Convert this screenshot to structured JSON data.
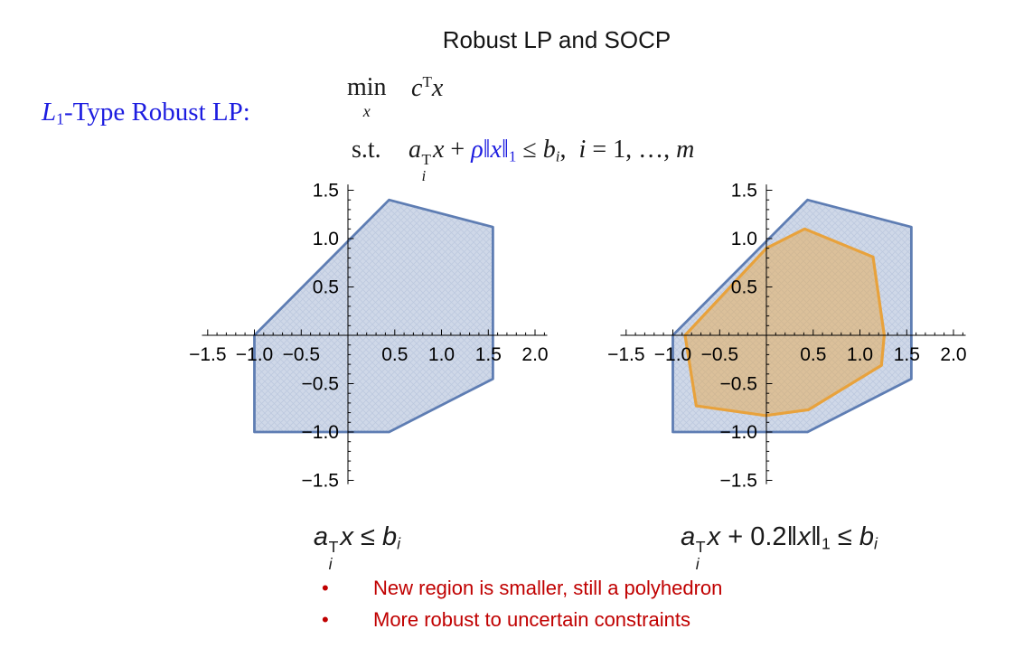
{
  "slide": {
    "title": "Robust LP and SOCP"
  },
  "colors": {
    "math_blue": "#1d1de0",
    "bullet_red": "#C00000",
    "region_blue_stroke": "#5E7DB3",
    "region_blue_fill": "rgba(95,127,179,0.30)",
    "region_orange_stroke": "#E8A23C",
    "region_orange_fill": "rgba(232,164,60,0.45)"
  },
  "label_segments": [
    {
      "t": "L",
      "c": "it"
    },
    {
      "t": "1",
      "c": "sub"
    },
    {
      "t": "-Type Robust LP:",
      "c": "rm"
    }
  ],
  "formula": {
    "min": "min",
    "min_sub": "x",
    "objective": [
      {
        "t": "c",
        "c": "it"
      },
      {
        "t": "T",
        "c": "sup"
      },
      {
        "t": "x",
        "c": "it"
      }
    ],
    "st": "s.t.",
    "constraint": [
      {
        "t": "a",
        "c": "it"
      },
      {
        "sup": "T",
        "sub": "i"
      },
      {
        "t": "x",
        "c": "it"
      },
      {
        "t": " + ",
        "c": "rm"
      },
      {
        "t": "ρ",
        "c": "it blue"
      },
      {
        "t": "‖",
        "c": "rm blue"
      },
      {
        "t": "x",
        "c": "it blue"
      },
      {
        "t": "‖",
        "c": "rm blue"
      },
      {
        "t": "1",
        "c": "sub blue"
      },
      {
        "t": " ≤ ",
        "c": "rm"
      },
      {
        "t": "b",
        "c": "it"
      },
      {
        "t": "i",
        "c": "sub it"
      },
      {
        "t": ", ",
        "c": "rm"
      },
      {
        "t": "i",
        "c": "it"
      },
      {
        "t": " = 1, …, ",
        "c": "rm"
      },
      {
        "t": "m",
        "c": "it"
      }
    ]
  },
  "captions": {
    "left": [
      {
        "t": "a",
        "c": "it"
      },
      {
        "sup": "T",
        "sub": "i"
      },
      {
        "t": "x",
        "c": "it"
      },
      {
        "t": " ≤ ",
        "c": "rm"
      },
      {
        "t": "b",
        "c": "it"
      },
      {
        "t": "i",
        "c": "sub it"
      }
    ],
    "right": [
      {
        "t": "a",
        "c": "it"
      },
      {
        "sup": "T",
        "sub": "i"
      },
      {
        "t": "x",
        "c": "it"
      },
      {
        "t": " + 0.2",
        "c": "rm"
      },
      {
        "t": "‖",
        "c": "rm"
      },
      {
        "t": "x",
        "c": "it"
      },
      {
        "t": "‖",
        "c": "rm"
      },
      {
        "t": "1",
        "c": "sub"
      },
      {
        "t": " ≤ ",
        "c": "rm"
      },
      {
        "t": "b",
        "c": "it"
      },
      {
        "t": "i",
        "c": "sub it"
      }
    ]
  },
  "bullets": [
    "New region is smaller, still a polyhedron",
    "More robust to uncertain constraints"
  ],
  "chart_data": [
    {
      "type": "region-plot",
      "title": "Original LP feasible region",
      "xlabel": "",
      "ylabel": "",
      "xlim": [
        -1.56,
        2.13
      ],
      "ylim": [
        -1.54,
        1.56
      ],
      "xticks": [
        -1.5,
        -1.0,
        -0.5,
        0.5,
        1.0,
        1.5,
        2.0
      ],
      "yticks": [
        -1.5,
        -1.0,
        -0.5,
        0.5,
        1.0,
        1.5
      ],
      "xminor_range": [
        -1.5,
        2.1
      ],
      "yminor_range": [
        -1.5,
        1.5
      ],
      "minor_step": 0.1,
      "grid": false,
      "regions": [
        {
          "name": "feasible-region-original",
          "stroke": "#5E7DB3",
          "fill": "rgba(95,127,179,0.30)",
          "stroke_width": 2.8,
          "hatch": true,
          "points": [
            [
              -1.0,
              0.0
            ],
            [
              0.44,
              1.4
            ],
            [
              1.55,
              1.12
            ],
            [
              1.55,
              -0.45
            ],
            [
              0.44,
              -1.0
            ],
            [
              -1.0,
              -1.0
            ]
          ]
        }
      ]
    },
    {
      "type": "region-plot",
      "title": "Robust LP feasible region (rho = 0.2)",
      "xlabel": "",
      "ylabel": "",
      "xlim": [
        -1.56,
        2.13
      ],
      "ylim": [
        -1.54,
        1.56
      ],
      "xticks": [
        -1.5,
        -1.0,
        -0.5,
        0.5,
        1.0,
        1.5,
        2.0
      ],
      "yticks": [
        -1.5,
        -1.0,
        -0.5,
        0.5,
        1.0,
        1.5
      ],
      "xminor_range": [
        -1.5,
        2.1
      ],
      "yminor_range": [
        -1.5,
        1.5
      ],
      "minor_step": 0.1,
      "grid": false,
      "regions": [
        {
          "name": "feasible-region-original",
          "stroke": "#5E7DB3",
          "fill": "rgba(95,127,179,0.30)",
          "stroke_width": 2.8,
          "hatch": true,
          "points": [
            [
              -1.0,
              0.0
            ],
            [
              0.44,
              1.4
            ],
            [
              1.55,
              1.12
            ],
            [
              1.55,
              -0.45
            ],
            [
              0.44,
              -1.0
            ],
            [
              -1.0,
              -1.0
            ]
          ]
        },
        {
          "name": "feasible-region-robust",
          "stroke": "#E8A23C",
          "fill": "rgba(232,164,60,0.45)",
          "stroke_width": 3.2,
          "hatch": false,
          "points": [
            [
              -0.87,
              0.0
            ],
            [
              0.0,
              0.9
            ],
            [
              0.41,
              1.1
            ],
            [
              1.14,
              0.81
            ],
            [
              1.26,
              0.0
            ],
            [
              1.23,
              -0.31
            ],
            [
              0.45,
              -0.77
            ],
            [
              -0.01,
              -0.83
            ],
            [
              -0.75,
              -0.73
            ]
          ]
        }
      ]
    }
  ]
}
